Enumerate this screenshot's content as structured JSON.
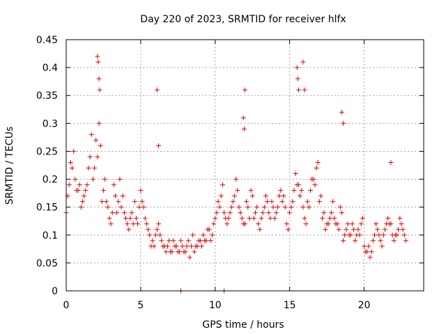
{
  "chart_data": {
    "type": "scatter",
    "title": "Day 220 of 2023, SRMTID for receiver hlfx",
    "xlabel": "GPS time / hours",
    "ylabel": "SRMTID / TECUs",
    "xlim": [
      0,
      24
    ],
    "ylim": [
      0,
      0.45
    ],
    "xticks": [
      0,
      5,
      10,
      15,
      20
    ],
    "xtick_labels": [
      "0",
      "5",
      "10",
      "15",
      "20"
    ],
    "yticks": [
      0,
      0.05,
      0.1,
      0.15,
      0.2,
      0.25,
      0.3,
      0.35,
      0.4,
      0.45
    ],
    "ytick_labels": [
      "0",
      "0.05",
      "0.1",
      "0.15",
      "0.2",
      "0.25",
      "0.3",
      "0.35",
      "0.4",
      "0.45"
    ],
    "grid": true,
    "marker": "+",
    "marker_color": "#e00000",
    "series": [
      {
        "name": "SRMTID",
        "x": [
          0.0,
          0.2,
          0.4,
          0.6,
          0.8,
          1.0,
          1.2,
          1.4,
          1.6,
          1.8,
          2.0,
          2.2,
          2.4,
          2.6,
          2.8,
          3.0,
          3.2,
          3.4,
          3.6,
          3.8,
          4.0,
          4.2,
          4.4,
          4.6,
          4.8,
          5.0,
          5.2,
          5.4,
          5.6,
          5.8,
          6.0,
          6.2,
          6.4,
          6.6,
          6.8,
          7.0,
          7.2,
          7.4,
          7.6,
          7.8,
          8.0,
          8.2,
          8.4,
          8.6,
          8.8,
          9.0,
          9.2,
          9.4,
          9.6,
          9.8,
          10.0,
          10.2,
          10.4,
          10.6,
          10.8,
          11.0,
          11.2,
          11.4,
          11.6,
          11.8,
          12.0,
          12.2,
          12.4,
          12.6,
          12.8,
          13.0,
          13.2,
          13.4,
          13.6,
          13.8,
          14.0,
          14.2,
          14.4,
          14.6,
          14.8,
          15.0,
          15.2,
          15.4,
          15.6,
          15.8,
          16.0,
          16.2,
          16.4,
          16.6,
          16.8,
          17.0,
          17.2,
          17.4,
          17.6,
          17.8,
          18.0,
          18.2,
          18.4,
          18.6,
          18.8,
          19.0,
          19.2,
          19.4,
          19.6,
          19.8,
          20.0,
          20.2,
          20.4,
          20.6,
          20.8,
          21.0,
          21.2,
          21.4,
          21.6,
          21.8,
          22.0,
          22.2,
          22.4,
          22.6,
          22.8,
          0.1,
          0.3,
          0.5,
          0.7,
          0.9,
          1.1,
          1.3,
          1.5,
          1.7,
          1.9,
          2.1,
          2.3,
          2.5,
          2.7,
          2.9,
          3.1,
          3.3,
          3.5,
          3.7,
          3.9,
          4.1,
          4.3,
          4.5,
          4.7,
          4.9,
          5.1,
          5.3,
          5.5,
          5.7,
          5.9,
          6.1,
          6.3,
          6.5,
          6.7,
          6.9,
          7.1,
          7.3,
          7.5,
          7.7,
          7.9,
          8.1,
          8.3,
          8.5,
          8.7,
          8.9,
          9.1,
          9.3,
          9.5,
          9.7,
          9.9,
          10.1,
          10.3,
          10.5,
          10.7,
          10.9,
          11.1,
          11.3,
          11.5,
          11.7,
          11.9,
          12.1,
          12.3,
          12.5,
          12.7,
          12.9,
          13.1,
          13.3,
          13.5,
          13.7,
          13.9,
          14.1,
          14.3,
          14.5,
          14.7,
          14.9,
          15.1,
          15.3,
          15.5,
          15.7,
          15.9,
          16.1,
          16.3,
          16.5,
          16.7,
          16.9,
          17.1,
          17.3,
          17.5,
          17.7,
          17.9,
          18.1,
          18.3,
          18.5,
          18.7,
          18.9,
          19.1,
          19.3,
          19.5,
          19.7,
          19.9,
          20.1,
          20.3,
          20.5,
          20.7,
          20.9,
          21.1,
          21.3,
          21.5,
          21.7,
          21.9,
          22.1,
          22.3,
          22.5,
          22.7,
          2.1,
          2.15,
          2.2,
          2.25,
          6.1,
          6.2,
          11.9,
          11.95,
          12.0,
          15.5,
          15.55,
          15.6,
          15.9,
          16.0,
          18.5,
          18.6,
          21.8,
          7.7,
          10.6
        ],
        "y": [
          0.14,
          0.19,
          0.22,
          0.2,
          0.18,
          0.15,
          0.17,
          0.19,
          0.24,
          0.2,
          0.27,
          0.3,
          0.16,
          0.2,
          0.15,
          0.12,
          0.19,
          0.14,
          0.2,
          0.17,
          0.13,
          0.11,
          0.14,
          0.16,
          0.12,
          0.18,
          0.15,
          0.12,
          0.1,
          0.09,
          0.1,
          0.12,
          0.09,
          0.08,
          0.08,
          0.07,
          0.09,
          0.08,
          0.07,
          0.08,
          0.07,
          0.09,
          0.08,
          0.07,
          0.08,
          0.09,
          0.1,
          0.09,
          0.11,
          0.1,
          0.13,
          0.16,
          0.17,
          0.14,
          0.12,
          0.14,
          0.16,
          0.2,
          0.15,
          0.13,
          0.12,
          0.15,
          0.18,
          0.13,
          0.15,
          0.11,
          0.14,
          0.17,
          0.14,
          0.16,
          0.13,
          0.15,
          0.18,
          0.17,
          0.12,
          0.14,
          0.16,
          0.21,
          0.19,
          0.18,
          0.13,
          0.16,
          0.18,
          0.2,
          0.22,
          0.16,
          0.13,
          0.11,
          0.12,
          0.14,
          0.13,
          0.12,
          0.15,
          0.09,
          0.11,
          0.1,
          0.12,
          0.09,
          0.11,
          0.12,
          0.08,
          0.07,
          0.06,
          0.09,
          0.12,
          0.1,
          0.08,
          0.11,
          0.13,
          0.12,
          0.09,
          0.1,
          0.13,
          0.11,
          0.09,
          0.17,
          0.23,
          0.25,
          0.18,
          0.19,
          0.16,
          0.18,
          0.22,
          0.28,
          0.22,
          0.24,
          0.26,
          0.18,
          0.16,
          0.13,
          0.14,
          0.17,
          0.16,
          0.15,
          0.14,
          0.12,
          0.13,
          0.12,
          0.13,
          0.15,
          0.16,
          0.13,
          0.11,
          0.08,
          0.08,
          0.11,
          0.1,
          0.08,
          0.07,
          0.09,
          0.07,
          0.08,
          0.07,
          0.09,
          0.07,
          0.08,
          0.06,
          0.1,
          0.08,
          0.09,
          0.08,
          0.09,
          0.11,
          0.09,
          0.12,
          0.14,
          0.15,
          0.19,
          0.13,
          0.13,
          0.15,
          0.17,
          0.18,
          0.14,
          0.12,
          0.16,
          0.13,
          0.17,
          0.14,
          0.12,
          0.13,
          0.15,
          0.16,
          0.13,
          0.15,
          0.14,
          0.17,
          0.16,
          0.15,
          0.11,
          0.15,
          0.18,
          0.19,
          0.17,
          0.15,
          0.12,
          0.15,
          0.2,
          0.19,
          0.23,
          0.17,
          0.14,
          0.12,
          0.13,
          0.16,
          0.12,
          0.11,
          0.14,
          0.1,
          0.12,
          0.1,
          0.11,
          0.1,
          0.1,
          0.13,
          0.07,
          0.08,
          0.07,
          0.1,
          0.11,
          0.09,
          0.1,
          0.12,
          0.12,
          0.1,
          0.1,
          0.11,
          0.12,
          0.1,
          0.42,
          0.41,
          0.38,
          0.36,
          0.36,
          0.26,
          0.31,
          0.29,
          0.36,
          0.4,
          0.38,
          0.36,
          0.41,
          0.36,
          0.32,
          0.3,
          0.23,
          0.0,
          0.0
        ]
      }
    ]
  }
}
